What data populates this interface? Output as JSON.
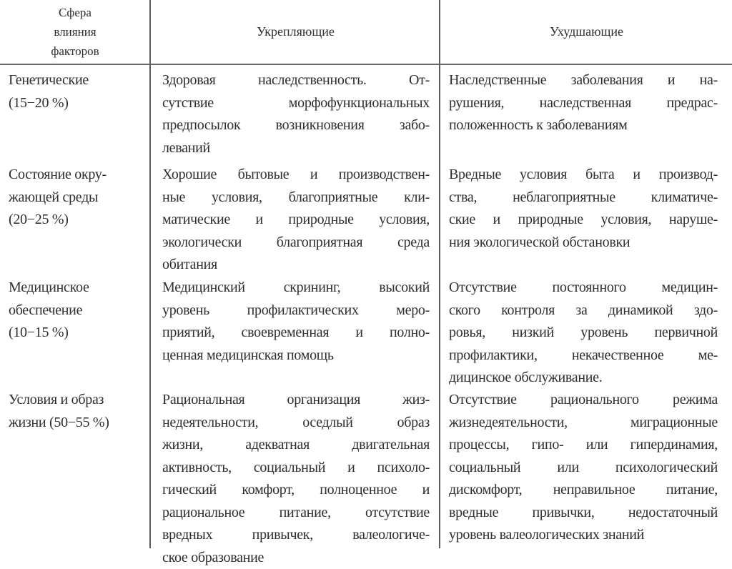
{
  "header": {
    "col1": [
      "Сфера",
      "влияния",
      "факторов"
    ],
    "col2": "Укрепляющие",
    "col3": "Ухудшающие"
  },
  "rows": [
    {
      "sphere": [
        "Генетические",
        "(15−20 %)"
      ],
      "strengthening": [
        "Здоровая наследственность. От-",
        "сутствие морфофункциональных",
        "предпосылок возникновения забо-",
        "леваний"
      ],
      "worsening": [
        "Наследственные заболевания и на-",
        "рушения, наследственная предрас-",
        "положенность к заболеваниям"
      ]
    },
    {
      "sphere": [
        "Состояние окру-",
        "жающей среды",
        "(20−25 %)"
      ],
      "strengthening": [
        "Хорошие бытовые и производствен-",
        "ные условия, благоприятные кли-",
        "матические и природные условия,",
        "экологически благоприятная среда",
        "обитания"
      ],
      "worsening": [
        "Вредные условия быта и производ-",
        "ства, неблагоприятные климатиче-",
        "ские и природные условия, наруше-",
        "ния экологической обстановки"
      ]
    },
    {
      "sphere": [
        "Медицинское",
        "обеспечение",
        "(10−15 %)"
      ],
      "strengthening": [
        "Медицинский скрининг, высокий",
        "уровень профилактических меро-",
        "приятий, своевременная и полно-",
        "ценная медицинская помощь"
      ],
      "worsening": [
        "Отсутствие постоянного медицин-",
        "ского контроля за динамикой здо-",
        "ровья, низкий уровень первичной",
        "профилактики, некачественное ме-",
        "дицинское обслуживание."
      ]
    },
    {
      "sphere": [
        "Условия и образ",
        "жизни (50−55 %)"
      ],
      "strengthening": [
        "Рациональная организация жиз-",
        "недеятельности, оседлый образ",
        "жизни, адекватная двигательная",
        "активность, социальный и психоло-",
        "гический комфорт, полноценное и",
        "рациональное питание, отсутствие",
        "вредных привычек, валеологиче-",
        "ское образование"
      ],
      "worsening": [
        "Отсутствие рационального режима",
        "жизнедеятельности, миграционные",
        "процессы, гипо- или гипердинамия,",
        "социальный или психологический",
        "дискомфорт, неправильное питание,",
        "вредные привычки, недостаточный",
        "уровень валеологических знаний"
      ]
    }
  ]
}
